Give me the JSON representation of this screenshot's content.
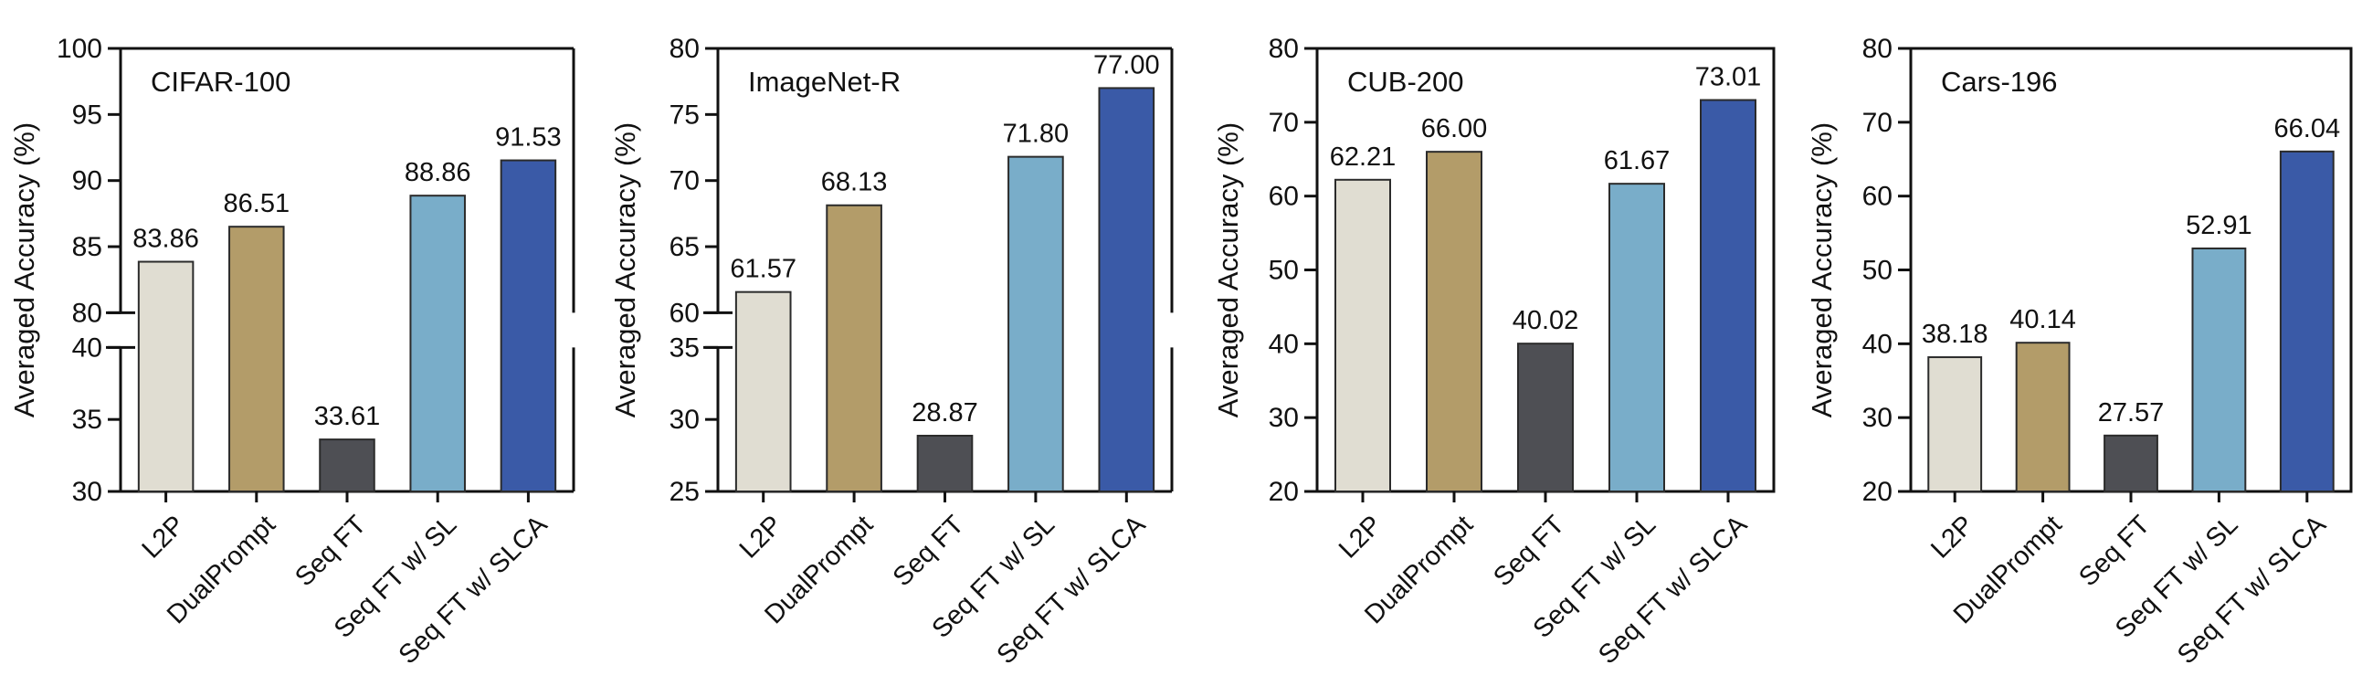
{
  "chart_data": [
    {
      "type": "bar",
      "title": "CIFAR-100",
      "ylabel": "Averaged Accuracy (%)",
      "xlabel": "",
      "categories": [
        "L2P",
        "DualPrompt",
        "Seq FT",
        "Seq FT w/ SL",
        "Seq FT w/ SLCA"
      ],
      "values": [
        83.86,
        86.51,
        33.61,
        88.86,
        91.53
      ],
      "value_labels": [
        "83.86",
        "86.51",
        "33.61",
        "88.86",
        "91.53"
      ],
      "ylim": [
        30,
        100
      ],
      "broken_axis": {
        "lower_range": [
          30,
          40
        ],
        "upper_range": [
          80,
          100
        ]
      },
      "yticks": [
        30,
        35,
        40,
        80,
        85,
        90,
        95,
        100
      ],
      "ytick_labels": [
        "30",
        "35",
        "40",
        "80",
        "85",
        "90",
        "95",
        "100"
      ],
      "grid": false
    },
    {
      "type": "bar",
      "title": "ImageNet-R",
      "ylabel": "Averaged Accuracy (%)",
      "xlabel": "",
      "categories": [
        "L2P",
        "DualPrompt",
        "Seq FT",
        "Seq FT w/ SL",
        "Seq FT w/ SLCA"
      ],
      "values": [
        61.57,
        68.13,
        28.87,
        71.8,
        77.0
      ],
      "value_labels": [
        "61.57",
        "68.13",
        "28.87",
        "71.80",
        "77.00"
      ],
      "ylim": [
        25,
        80
      ],
      "broken_axis": {
        "lower_range": [
          25,
          35
        ],
        "upper_range": [
          60,
          80
        ]
      },
      "yticks": [
        25,
        30,
        35,
        60,
        65,
        70,
        75,
        80
      ],
      "ytick_labels": [
        "25",
        "30",
        "35",
        "60",
        "65",
        "70",
        "75",
        "80"
      ],
      "grid": false
    },
    {
      "type": "bar",
      "title": "CUB-200",
      "ylabel": "Averaged Accuracy (%)",
      "xlabel": "",
      "categories": [
        "L2P",
        "DualPrompt",
        "Seq FT",
        "Seq FT w/ SL",
        "Seq FT w/ SLCA"
      ],
      "values": [
        62.21,
        66.0,
        40.02,
        61.67,
        73.01
      ],
      "value_labels": [
        "62.21",
        "66.00",
        "40.02",
        "61.67",
        "73.01"
      ],
      "ylim": [
        20,
        80
      ],
      "broken_axis": null,
      "yticks": [
        20,
        30,
        40,
        50,
        60,
        70,
        80
      ],
      "ytick_labels": [
        "20",
        "30",
        "40",
        "50",
        "60",
        "70",
        "80"
      ],
      "grid": false
    },
    {
      "type": "bar",
      "title": "Cars-196",
      "ylabel": "Averaged Accuracy (%)",
      "xlabel": "",
      "categories": [
        "L2P",
        "DualPrompt",
        "Seq FT",
        "Seq FT w/ SL",
        "Seq FT w/ SLCA"
      ],
      "values": [
        38.18,
        40.14,
        27.57,
        52.91,
        66.04
      ],
      "value_labels": [
        "38.18",
        "40.14",
        "27.57",
        "52.91",
        "66.04"
      ],
      "ylim": [
        20,
        80
      ],
      "broken_axis": null,
      "yticks": [
        20,
        30,
        40,
        50,
        60,
        70,
        80
      ],
      "ytick_labels": [
        "20",
        "30",
        "40",
        "50",
        "60",
        "70",
        "80"
      ],
      "grid": false
    }
  ],
  "style": {
    "bar_colors": [
      "#e0ddd2",
      "#b39c69",
      "#4e4f54",
      "#79adc9",
      "#3a5aa7"
    ],
    "bar_stroke": "#2b2b2b",
    "axis_color": "#111111",
    "text_color": "#111111"
  }
}
